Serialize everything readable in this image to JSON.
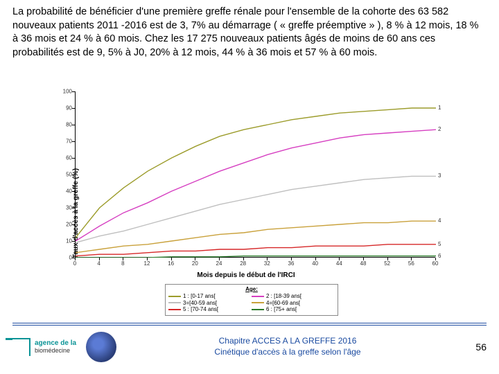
{
  "paragraph": "La probabilité de bénéficier d'une première greffe rénale pour l'ensemble de la cohorte des 63 582 nouveaux patients 2011 -2016 est de 3, 7% au démarrage ( « greffe préemptive » ), 8 % à 12 mois, 18 % à 36 mois et 24 % à 60 mois. Chez les 17 275 nouveaux patients âgés de moins de 60 ans ces probabilités est de 9, 5% à J0, 20% à 12 mois, 44 % à 36 mois et 57 % à 60 mois.",
  "chart": {
    "type": "line",
    "ylabel": "Taux d'accès à la greffe (%)",
    "xlabel": "Mois depuis le début de l'IRCI",
    "ylim": [
      0,
      100
    ],
    "ytick_step": 10,
    "xlim": [
      0,
      60
    ],
    "xtick_step": 4,
    "background": "#ffffff",
    "axis_color": "#000000",
    "title_fontsize": 10,
    "label_fontsize": 10,
    "tick_fontsize": 8,
    "legend": {
      "title": "Age:",
      "items": [
        {
          "id": "1",
          "label": "1 : [0-17 ans[",
          "color": "#9c9c2b"
        },
        {
          "id": "2",
          "label": "2 : [18-39 ans[",
          "color": "#d63fc1"
        },
        {
          "id": "3",
          "label": "3=[40-59 ans[",
          "color": "#bfbfbf"
        },
        {
          "id": "4",
          "label": "4=[60-69 ans[",
          "color": "#c9a13b"
        },
        {
          "id": "5",
          "label": "5 : [70-74 ans[",
          "color": "#d62728"
        },
        {
          "id": "6",
          "label": "6 : [75+ ans[",
          "color": "#2a7a2a"
        }
      ]
    },
    "series": [
      {
        "id": "1",
        "color": "#9c9c2b",
        "width": 1.4,
        "end_y": 90,
        "points": [
          [
            0,
            12
          ],
          [
            4,
            30
          ],
          [
            8,
            42
          ],
          [
            12,
            52
          ],
          [
            16,
            60
          ],
          [
            20,
            67
          ],
          [
            24,
            73
          ],
          [
            28,
            77
          ],
          [
            32,
            80
          ],
          [
            36,
            83
          ],
          [
            40,
            85
          ],
          [
            44,
            87
          ],
          [
            48,
            88
          ],
          [
            52,
            89
          ],
          [
            56,
            90
          ],
          [
            60,
            90
          ]
        ]
      },
      {
        "id": "2",
        "color": "#d63fc1",
        "width": 1.4,
        "end_y": 77,
        "points": [
          [
            0,
            10
          ],
          [
            4,
            19
          ],
          [
            8,
            27
          ],
          [
            12,
            33
          ],
          [
            16,
            40
          ],
          [
            20,
            46
          ],
          [
            24,
            52
          ],
          [
            28,
            57
          ],
          [
            32,
            62
          ],
          [
            36,
            66
          ],
          [
            40,
            69
          ],
          [
            44,
            72
          ],
          [
            48,
            74
          ],
          [
            52,
            75
          ],
          [
            56,
            76
          ],
          [
            60,
            77
          ]
        ]
      },
      {
        "id": "3",
        "color": "#bfbfbf",
        "width": 1.4,
        "end_y": 49,
        "points": [
          [
            0,
            9
          ],
          [
            4,
            13
          ],
          [
            8,
            16
          ],
          [
            12,
            20
          ],
          [
            16,
            24
          ],
          [
            20,
            28
          ],
          [
            24,
            32
          ],
          [
            28,
            35
          ],
          [
            32,
            38
          ],
          [
            36,
            41
          ],
          [
            40,
            43
          ],
          [
            44,
            45
          ],
          [
            48,
            47
          ],
          [
            52,
            48
          ],
          [
            56,
            49
          ],
          [
            60,
            49
          ]
        ]
      },
      {
        "id": "4",
        "color": "#c9a13b",
        "width": 1.4,
        "end_y": 22,
        "points": [
          [
            0,
            3
          ],
          [
            4,
            5
          ],
          [
            8,
            7
          ],
          [
            12,
            8
          ],
          [
            16,
            10
          ],
          [
            20,
            12
          ],
          [
            24,
            14
          ],
          [
            28,
            15
          ],
          [
            32,
            17
          ],
          [
            36,
            18
          ],
          [
            40,
            19
          ],
          [
            44,
            20
          ],
          [
            48,
            21
          ],
          [
            52,
            21
          ],
          [
            56,
            22
          ],
          [
            60,
            22
          ]
        ]
      },
      {
        "id": "5",
        "color": "#d62728",
        "width": 1.4,
        "end_y": 8,
        "points": [
          [
            0,
            1
          ],
          [
            4,
            2
          ],
          [
            8,
            2
          ],
          [
            12,
            3
          ],
          [
            16,
            4
          ],
          [
            20,
            4
          ],
          [
            24,
            5
          ],
          [
            28,
            5
          ],
          [
            32,
            6
          ],
          [
            36,
            6
          ],
          [
            40,
            7
          ],
          [
            44,
            7
          ],
          [
            48,
            7
          ],
          [
            52,
            8
          ],
          [
            56,
            8
          ],
          [
            60,
            8
          ]
        ]
      },
      {
        "id": "6",
        "color": "#2a7a2a",
        "width": 1.4,
        "end_y": 1,
        "points": [
          [
            0,
            0
          ],
          [
            4,
            0
          ],
          [
            8,
            0
          ],
          [
            12,
            0
          ],
          [
            16,
            0.5
          ],
          [
            20,
            0.5
          ],
          [
            24,
            0.5
          ],
          [
            28,
            1
          ],
          [
            32,
            1
          ],
          [
            36,
            1
          ],
          [
            40,
            1
          ],
          [
            44,
            1
          ],
          [
            48,
            1
          ],
          [
            52,
            1
          ],
          [
            56,
            1
          ],
          [
            60,
            1
          ]
        ]
      }
    ]
  },
  "footer": {
    "logo_line1": "agence de la",
    "logo_line2": "biomédecine",
    "chapter_line1": "Chapitre ACCES A LA GREFFE 2016",
    "chapter_line2": "Cinétique d'accès à la greffe selon l'âge",
    "page": "56"
  }
}
